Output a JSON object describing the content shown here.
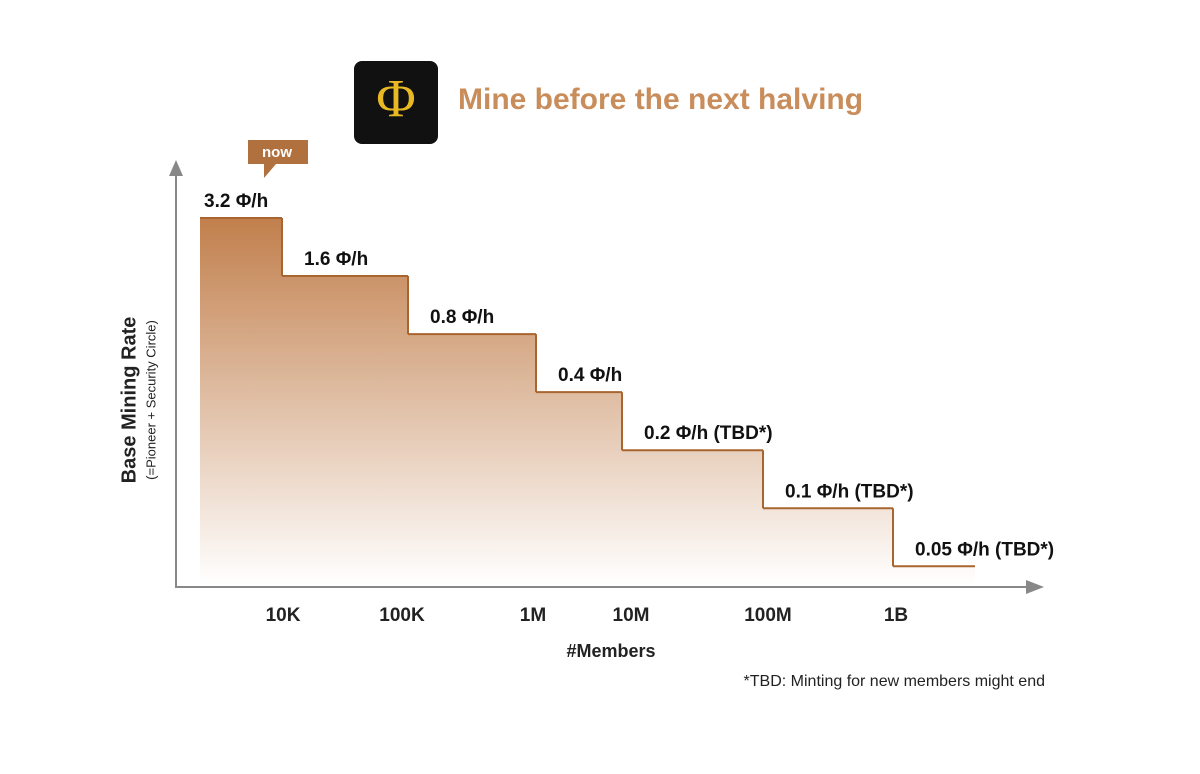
{
  "chart_data": {
    "type": "step",
    "logo": "Φ",
    "title": "Mine before the next halving",
    "marker": "now",
    "y_label": "Base Mining Rate",
    "y_sublabel": "(=Pioneer + Security Circle)",
    "x_label": "#Members",
    "footnote": "*TBD: Minting for new members might end",
    "xticks": [
      "10K",
      "100K",
      "1M",
      "10M",
      "100M",
      "1B"
    ],
    "values": [
      3.2,
      1.6,
      0.8,
      0.4,
      0.2,
      0.1,
      0.05
    ],
    "value_labels": [
      "3.2 Φ/h",
      "1.6 Φ/h",
      "0.8 Φ/h",
      "0.4 Φ/h",
      "0.2 Φ/h (TBD*)",
      "0.1 Φ/h (TBD*)",
      "0.05 Φ/h (TBD*)"
    ],
    "color": "#a8652f",
    "log_scale": true,
    "ylim": [
      0.04,
      3.2
    ]
  }
}
